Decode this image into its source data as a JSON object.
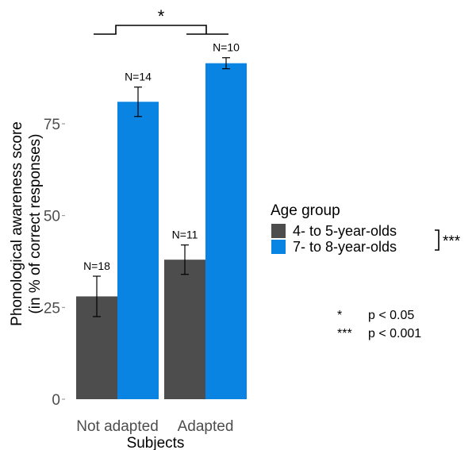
{
  "chart_data": {
    "type": "bar",
    "xlabel": "Subjects",
    "ylabel_line1": "Phonological awareness score",
    "ylabel_line2": "(in % of correct responses)",
    "categories": [
      "Not adapted",
      "Adapted"
    ],
    "ylim": [
      0,
      100
    ],
    "yticks": [
      0,
      25,
      50,
      75
    ],
    "grid": false,
    "series": [
      {
        "name": "4- to 5-year-olds",
        "color": "#4d4d4d",
        "values": [
          28,
          38
        ],
        "error_low": [
          22.5,
          34
        ],
        "error_high": [
          33.5,
          42
        ],
        "n_labels": [
          "N=18",
          "N=11"
        ]
      },
      {
        "name": "7- to 8-year-olds",
        "color": "#0a84e3",
        "values": [
          81,
          91.5
        ],
        "error_low": [
          77,
          90
        ],
        "error_high": [
          85,
          93
        ],
        "n_labels": [
          "N=14",
          "N=10"
        ]
      }
    ],
    "legend": {
      "title": "Age group",
      "position": "right",
      "significance_mark": "***"
    },
    "comparison_mark": "*",
    "significance_key": [
      {
        "symbol": "*",
        "text": "p < 0.05"
      },
      {
        "symbol": "***",
        "text": "p < 0.001"
      }
    ]
  }
}
